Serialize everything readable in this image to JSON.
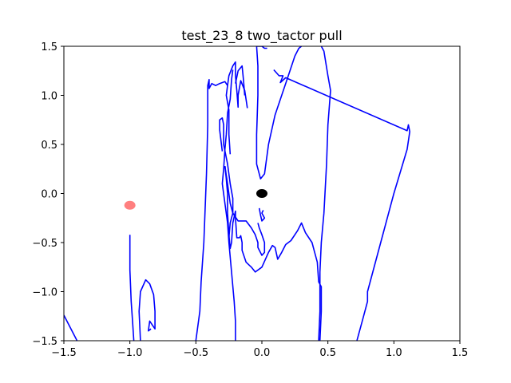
{
  "chart_data": {
    "type": "line",
    "title": "test_23_8 two_tactor pull",
    "xlabel": "",
    "ylabel": "",
    "xlim": [
      -1.5,
      1.5
    ],
    "ylim": [
      -1.5,
      1.5
    ],
    "grid": false,
    "xticks": [
      -1.5,
      -1.0,
      -0.5,
      0.0,
      0.5,
      1.0,
      1.5
    ],
    "yticks": [
      -1.5,
      -1.0,
      -0.5,
      0.0,
      0.5,
      1.0,
      1.5
    ],
    "xtick_labels": [
      "−1.5",
      "−1.0",
      "−0.5",
      "0.0",
      "0.5",
      "1.0",
      "1.5"
    ],
    "ytick_labels": [
      "−1.5",
      "−1.0",
      "−0.5",
      "0.0",
      "0.5",
      "1.0",
      "1.5"
    ],
    "series": [
      {
        "color": "#0000ff",
        "segments": [
          [
            [
              -1.5,
              -1.24
            ],
            [
              -1.4,
              -1.5
            ]
          ],
          [
            [
              -1.0,
              -0.42
            ],
            [
              -1.0,
              -0.78
            ],
            [
              -0.99,
              -1.1
            ],
            [
              -0.98,
              -1.3
            ],
            [
              -0.97,
              -1.5
            ]
          ],
          [
            [
              -0.92,
              -1.5
            ],
            [
              -0.93,
              -1.2
            ],
            [
              -0.92,
              -1.0
            ],
            [
              -0.88,
              -0.88
            ],
            [
              -0.85,
              -0.92
            ],
            [
              -0.82,
              -1.03
            ],
            [
              -0.81,
              -1.2
            ],
            [
              -0.81,
              -1.38
            ],
            [
              -0.85,
              -1.3
            ],
            [
              -0.86,
              -1.4
            ],
            [
              -0.84,
              -1.38
            ]
          ],
          [
            [
              -0.5,
              -1.5
            ],
            [
              -0.47,
              -1.2
            ],
            [
              -0.46,
              -0.9
            ],
            [
              -0.44,
              -0.5
            ],
            [
              -0.42,
              0.2
            ],
            [
              -0.41,
              0.7
            ],
            [
              -0.41,
              1.1
            ],
            [
              -0.4,
              1.16
            ],
            [
              -0.4,
              1.07
            ],
            [
              -0.38,
              1.12
            ],
            [
              -0.35,
              1.1
            ],
            [
              -0.32,
              1.12
            ],
            [
              -0.28,
              1.14
            ],
            [
              -0.26,
              1.1
            ],
            [
              -0.27,
              1.0
            ],
            [
              -0.25,
              0.85
            ],
            [
              -0.25,
              0.6
            ],
            [
              -0.24,
              0.4
            ]
          ],
          [
            [
              -0.26,
              1.1
            ],
            [
              -0.25,
              1.2
            ],
            [
              -0.22,
              1.3
            ],
            [
              -0.2,
              1.34
            ],
            [
              -0.2,
              1.2
            ],
            [
              -0.19,
              1.05
            ],
            [
              -0.18,
              0.88
            ],
            [
              -0.18,
              1.0
            ],
            [
              -0.16,
              1.15
            ],
            [
              -0.13,
              1.05
            ],
            [
              -0.11,
              0.87
            ]
          ],
          [
            [
              -0.2,
              1.12
            ],
            [
              -0.18,
              1.25
            ],
            [
              -0.15,
              1.3
            ],
            [
              -0.14,
              1.16
            ],
            [
              -0.13,
              1.0
            ]
          ],
          [
            [
              -0.22,
              1.26
            ],
            [
              -0.23,
              1.16
            ],
            [
              -0.24,
              0.96
            ],
            [
              -0.26,
              0.82
            ],
            [
              -0.27,
              0.6
            ],
            [
              -0.28,
              0.45
            ],
            [
              -0.29,
              0.25
            ],
            [
              -0.3,
              0.1
            ],
            [
              -0.28,
              -0.1
            ],
            [
              -0.26,
              -0.3
            ],
            [
              -0.25,
              -0.5
            ],
            [
              -0.23,
              -0.8
            ],
            [
              -0.21,
              -1.1
            ],
            [
              -0.2,
              -1.3
            ],
            [
              -0.2,
              -1.5
            ]
          ],
          [
            [
              -0.3,
              0.43
            ],
            [
              -0.32,
              0.65
            ],
            [
              -0.32,
              0.75
            ],
            [
              -0.3,
              0.77
            ],
            [
              -0.29,
              0.7
            ],
            [
              -0.29,
              0.5
            ],
            [
              -0.26,
              0.3
            ],
            [
              -0.24,
              0.1
            ],
            [
              -0.22,
              -0.05
            ],
            [
              -0.22,
              -0.2
            ],
            [
              -0.24,
              -0.3
            ],
            [
              -0.25,
              -0.45
            ]
          ],
          [
            [
              -0.28,
              0.28
            ],
            [
              -0.27,
              0.15
            ],
            [
              -0.26,
              0.0
            ],
            [
              -0.26,
              -0.2
            ],
            [
              -0.25,
              -0.42
            ],
            [
              -0.24,
              -0.56
            ],
            [
              -0.23,
              -0.5
            ],
            [
              -0.22,
              -0.3
            ],
            [
              -0.2,
              -0.18
            ],
            [
              -0.2,
              -0.25
            ],
            [
              -0.19,
              -0.45
            ],
            [
              -0.17,
              -0.45
            ],
            [
              -0.16,
              -0.43
            ],
            [
              -0.15,
              -0.5
            ],
            [
              -0.15,
              -0.58
            ],
            [
              -0.12,
              -0.7
            ],
            [
              -0.08,
              -0.75
            ],
            [
              -0.05,
              -0.8
            ],
            [
              0.0,
              -0.75
            ],
            [
              0.05,
              -0.6
            ],
            [
              0.08,
              -0.53
            ],
            [
              0.1,
              -0.55
            ],
            [
              0.12,
              -0.67
            ],
            [
              0.15,
              -0.6
            ],
            [
              0.18,
              -0.52
            ],
            [
              0.22,
              -0.48
            ],
            [
              0.27,
              -0.38
            ],
            [
              0.3,
              -0.3
            ],
            [
              0.33,
              -0.4
            ],
            [
              0.38,
              -0.5
            ],
            [
              0.4,
              -0.6
            ],
            [
              0.42,
              -0.7
            ],
            [
              0.43,
              -0.9
            ],
            [
              0.45,
              -0.95
            ],
            [
              0.45,
              -1.2
            ],
            [
              0.44,
              -1.5
            ]
          ],
          [
            [
              -0.28,
              0.28
            ],
            [
              -0.26,
              0.1
            ],
            [
              -0.24,
              -0.1
            ],
            [
              -0.22,
              -0.2
            ],
            [
              -0.18,
              -0.28
            ],
            [
              -0.12,
              -0.28
            ],
            [
              -0.08,
              -0.35
            ],
            [
              -0.05,
              -0.42
            ],
            [
              -0.03,
              -0.5
            ],
            [
              -0.03,
              -0.55
            ],
            [
              0.0,
              -0.63
            ],
            [
              0.02,
              -0.6
            ],
            [
              0.02,
              -0.5
            ],
            [
              0.0,
              -0.42
            ],
            [
              -0.02,
              -0.35
            ],
            [
              -0.03,
              -0.3
            ]
          ],
          [
            [
              -0.02,
              -0.15
            ],
            [
              -0.01,
              -0.22
            ],
            [
              0.0,
              -0.28
            ],
            [
              0.02,
              -0.25
            ],
            [
              0.0,
              -0.2
            ],
            [
              0.01,
              -0.17
            ]
          ],
          [
            [
              -0.04,
              1.5
            ],
            [
              -0.03,
              1.3
            ],
            [
              -0.03,
              1.0
            ],
            [
              -0.04,
              0.6
            ],
            [
              -0.04,
              0.3
            ],
            [
              -0.02,
              0.2
            ],
            [
              -0.01,
              0.15
            ],
            [
              0.02,
              0.2
            ],
            [
              0.05,
              0.5
            ],
            [
              0.1,
              0.8
            ],
            [
              0.15,
              1.0
            ],
            [
              0.2,
              1.2
            ],
            [
              0.25,
              1.4
            ],
            [
              0.28,
              1.48
            ],
            [
              0.3,
              1.5
            ]
          ],
          [
            [
              -0.04,
              1.5
            ],
            [
              0.0,
              1.5
            ],
            [
              0.02,
              1.48
            ],
            [
              0.04,
              1.48
            ]
          ],
          [
            [
              0.45,
              1.5
            ],
            [
              0.47,
              1.45
            ],
            [
              0.5,
              1.2
            ],
            [
              0.52,
              1.05
            ],
            [
              0.5,
              0.7
            ],
            [
              0.49,
              0.3
            ],
            [
              0.47,
              -0.2
            ],
            [
              0.45,
              -0.5
            ],
            [
              0.44,
              -0.8
            ],
            [
              0.44,
              -1.2
            ],
            [
              0.43,
              -1.5
            ]
          ],
          [
            [
              0.09,
              1.26
            ],
            [
              0.13,
              1.2
            ],
            [
              0.16,
              1.2
            ],
            [
              0.14,
              1.13
            ],
            [
              0.18,
              1.18
            ],
            [
              1.1,
              0.64
            ],
            [
              1.11,
              0.7
            ],
            [
              1.12,
              0.63
            ],
            [
              1.1,
              0.45
            ],
            [
              1.0,
              0.0
            ],
            [
              0.9,
              -0.5
            ],
            [
              0.8,
              -1.0
            ],
            [
              0.8,
              -1.1
            ],
            [
              0.76,
              -1.3
            ],
            [
              0.72,
              -1.5
            ]
          ]
        ]
      }
    ],
    "markers": [
      {
        "x": -1.0,
        "y": -0.12,
        "color": "#ff0000",
        "opacity": 0.5
      },
      {
        "x": 0.0,
        "y": 0.0,
        "color": "#000000",
        "opacity": 1.0
      }
    ]
  }
}
